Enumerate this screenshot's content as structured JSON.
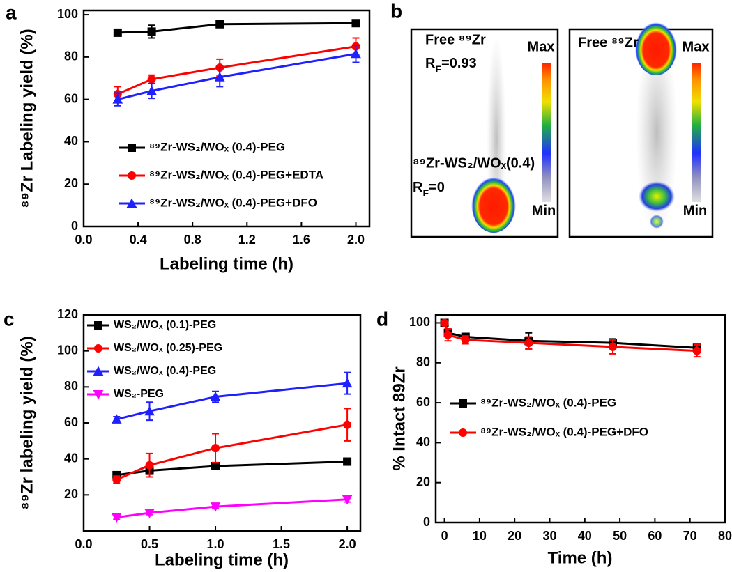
{
  "chart_data": [
    {
      "type": "line",
      "panel_label": "a",
      "xlabel": "Labeling time (h)",
      "ylabel": "⁸⁹Zr Labeling yield (%)",
      "x": [
        0.25,
        0.5,
        1,
        2
      ],
      "xlim": [
        0,
        2.1
      ],
      "ylim": [
        0,
        102
      ],
      "xticks": [
        {
          "value": 0,
          "label": "0.0"
        },
        {
          "value": 0.4,
          "label": "0.4"
        },
        {
          "value": 0.8,
          "label": "0.8"
        },
        {
          "value": 1.2,
          "label": "1.2"
        },
        {
          "value": 1.6,
          "label": "1.6"
        },
        {
          "value": 2,
          "label": "2.0"
        }
      ],
      "yticks": [
        0,
        20,
        40,
        60,
        80,
        100
      ],
      "series": [
        {
          "name": "⁸⁹Zr-WS₂/WOₓ (0.4)-PEG",
          "color": "#000000",
          "marker": "square",
          "values": [
            91.5,
            92,
            95.5,
            96
          ],
          "errors": [
            1.5,
            3,
            1.5,
            1
          ]
        },
        {
          "name": "⁸⁹Zr-WS₂/WOₓ (0.4)-PEG+EDTA",
          "color": "#ff0000",
          "marker": "circle",
          "values": [
            62.5,
            69.5,
            75,
            85
          ],
          "errors": [
            3.5,
            2,
            4,
            4
          ]
        },
        {
          "name": "⁸⁹Zr-WS₂/WOₓ (0.4)-PEG+DFO",
          "color": "#2020ff",
          "marker": "triangle",
          "values": [
            60,
            64,
            70.5,
            81.5
          ],
          "errors": [
            3,
            3.5,
            4.5,
            4
          ]
        }
      ]
    },
    {
      "type": "line",
      "panel_label": "c",
      "xlabel": "Labeling time (h)",
      "ylabel": "⁸⁹Zr labeling yield (%)",
      "x": [
        0.25,
        0.5,
        1,
        2
      ],
      "xlim": [
        0,
        2.1
      ],
      "ylim": [
        0,
        120
      ],
      "xticks": [
        {
          "value": 0,
          "label": "0.0"
        },
        {
          "value": 0.5,
          "label": "0.5"
        },
        {
          "value": 1,
          "label": "1.0"
        },
        {
          "value": 1.5,
          "label": "1.5"
        },
        {
          "value": 2,
          "label": "2.0"
        }
      ],
      "yticks": [
        20,
        40,
        60,
        80,
        100,
        120
      ],
      "series": [
        {
          "name": "WS₂/WOₓ (0.1)-PEG",
          "color": "#000000",
          "marker": "square",
          "values": [
            31,
            33.5,
            36,
            38.5
          ],
          "errors": [
            1,
            2,
            1,
            0.5
          ]
        },
        {
          "name": "WS₂/WOₓ (0.25)-PEG",
          "color": "#ff0000",
          "marker": "circle",
          "values": [
            28.5,
            36.5,
            46,
            59
          ],
          "errors": [
            2,
            6.5,
            8,
            9
          ]
        },
        {
          "name": "WS₂/WOₓ (0.4)-PEG",
          "color": "#2020ff",
          "marker": "triangle",
          "values": [
            62,
            66.5,
            74.5,
            82
          ],
          "errors": [
            1.5,
            5,
            3,
            6
          ]
        },
        {
          "name": "WS₂-PEG",
          "color": "#ff00ff",
          "marker": "triangle-down",
          "values": [
            7.5,
            10,
            13.5,
            17.5
          ],
          "errors": [
            1,
            1,
            1,
            1.5
          ]
        }
      ]
    },
    {
      "type": "line",
      "panel_label": "d",
      "xlabel": "Time (h)",
      "ylabel": "% Intact 89Zr",
      "x": [
        0,
        1,
        6,
        24,
        48,
        72
      ],
      "xlim": [
        -2.5,
        80
      ],
      "ylim": [
        0,
        104
      ],
      "xticks": [
        0,
        10,
        20,
        30,
        40,
        50,
        60,
        70,
        80
      ],
      "yticks": [
        0,
        20,
        40,
        60,
        80,
        100
      ],
      "series": [
        {
          "name": "⁸⁹Zr-WS₂/WOₓ (0.4)-PEG",
          "color": "#000000",
          "marker": "square",
          "values": [
            100,
            95,
            93,
            91,
            90,
            87.5
          ],
          "errors": [
            1,
            2,
            1.5,
            4,
            2,
            1.5
          ]
        },
        {
          "name": "⁸⁹Zr-WS₂/WOₓ (0.4)-PEG+DFO",
          "color": "#ff0000",
          "marker": "circle",
          "values": [
            100,
            94,
            91.5,
            90,
            88,
            86
          ],
          "errors": [
            1,
            3,
            2,
            3,
            3.5,
            3
          ]
        }
      ]
    }
  ],
  "panel_b": {
    "panel_label": "b",
    "left": {
      "title": "Free ⁸⁹Zr",
      "rf_top": [
        {
          "text": "R"
        },
        {
          "text": "F",
          "sub": true
        },
        {
          "text": "=0.93"
        }
      ],
      "compound": "⁸⁹Zr-WS₂/WOₓ(0.4)",
      "rf_bottom": [
        {
          "text": "R"
        },
        {
          "text": "F",
          "sub": true
        },
        {
          "text": "=0"
        }
      ],
      "max": "Max",
      "min": "Min"
    },
    "right": {
      "title": "Free ⁸⁹Zr",
      "max": "Max",
      "min": "Min"
    }
  }
}
